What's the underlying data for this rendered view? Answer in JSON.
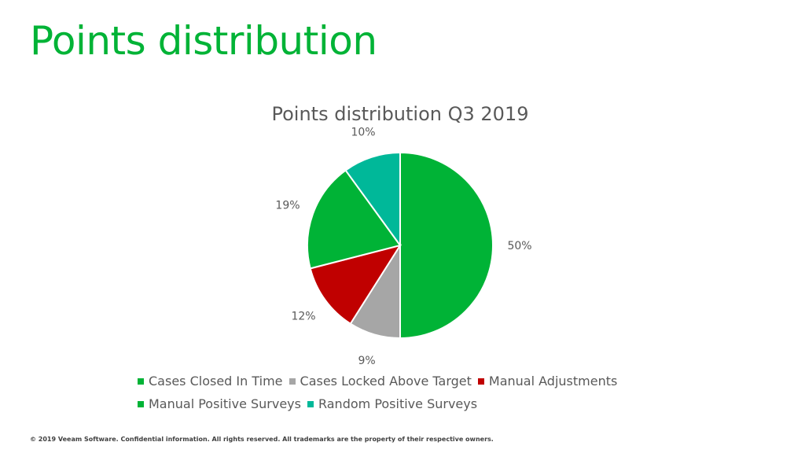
{
  "slide": {
    "title": "Points distribution",
    "title_color": "#00B336",
    "footer": "© 2019 Veeam Software. Confidential information. All rights reserved. All trademarks are the property of their respective owners."
  },
  "chart_data": {
    "type": "pie",
    "title": "Points distribution Q3 2019",
    "legend_position": "bottom",
    "slices": [
      {
        "name": "Cases Closed In Time",
        "value": 50,
        "label": "50%",
        "color": "#00B336"
      },
      {
        "name": "Cases Locked Above Target",
        "value": 9,
        "label": "9%",
        "color": "#A6A6A6"
      },
      {
        "name": "Manual Adjustments",
        "value": 12,
        "label": "12%",
        "color": "#C00000"
      },
      {
        "name": "Manual Positive Surveys",
        "value": 19,
        "label": "19%",
        "color": "#00B336"
      },
      {
        "name": "Random Positive Surveys",
        "value": 10,
        "label": "10%",
        "color": "#00B899"
      }
    ]
  }
}
